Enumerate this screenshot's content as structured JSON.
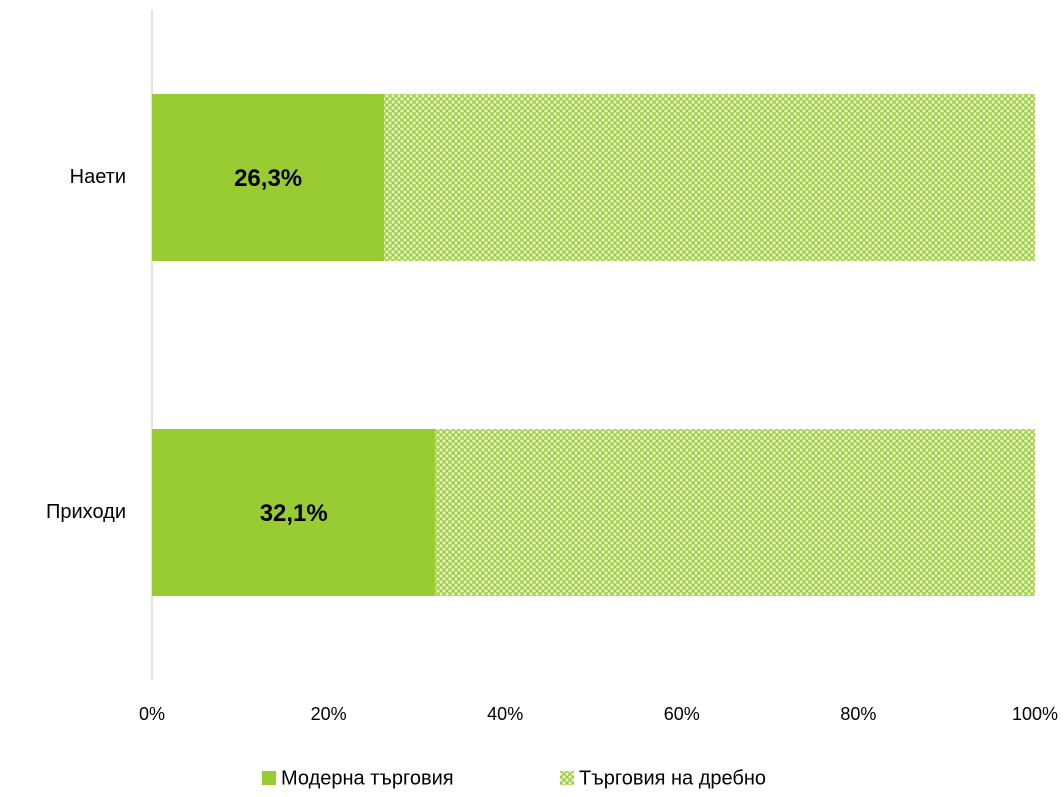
{
  "chart_data": {
    "type": "stacked_barh",
    "categories": [
      "Наети",
      "Приходи"
    ],
    "series": [
      {
        "name": "Модерна търговия",
        "color": "#99cc33",
        "values": [
          26.3,
          32.1
        ],
        "value_labels": [
          "26,3%",
          "32,1%"
        ]
      },
      {
        "name": "Търговия на дребно",
        "color": "#99cc33",
        "hatch": true,
        "values": [
          73.7,
          67.9
        ]
      }
    ],
    "xlim": [
      0,
      100
    ],
    "xticks": [
      {
        "value": 0,
        "label": "0%"
      },
      {
        "value": 20,
        "label": "20%"
      },
      {
        "value": 40,
        "label": "40%"
      },
      {
        "value": 60,
        "label": "60%"
      },
      {
        "value": 80,
        "label": "80%"
      },
      {
        "value": 100,
        "label": "100%"
      }
    ],
    "legend": "bottom"
  }
}
